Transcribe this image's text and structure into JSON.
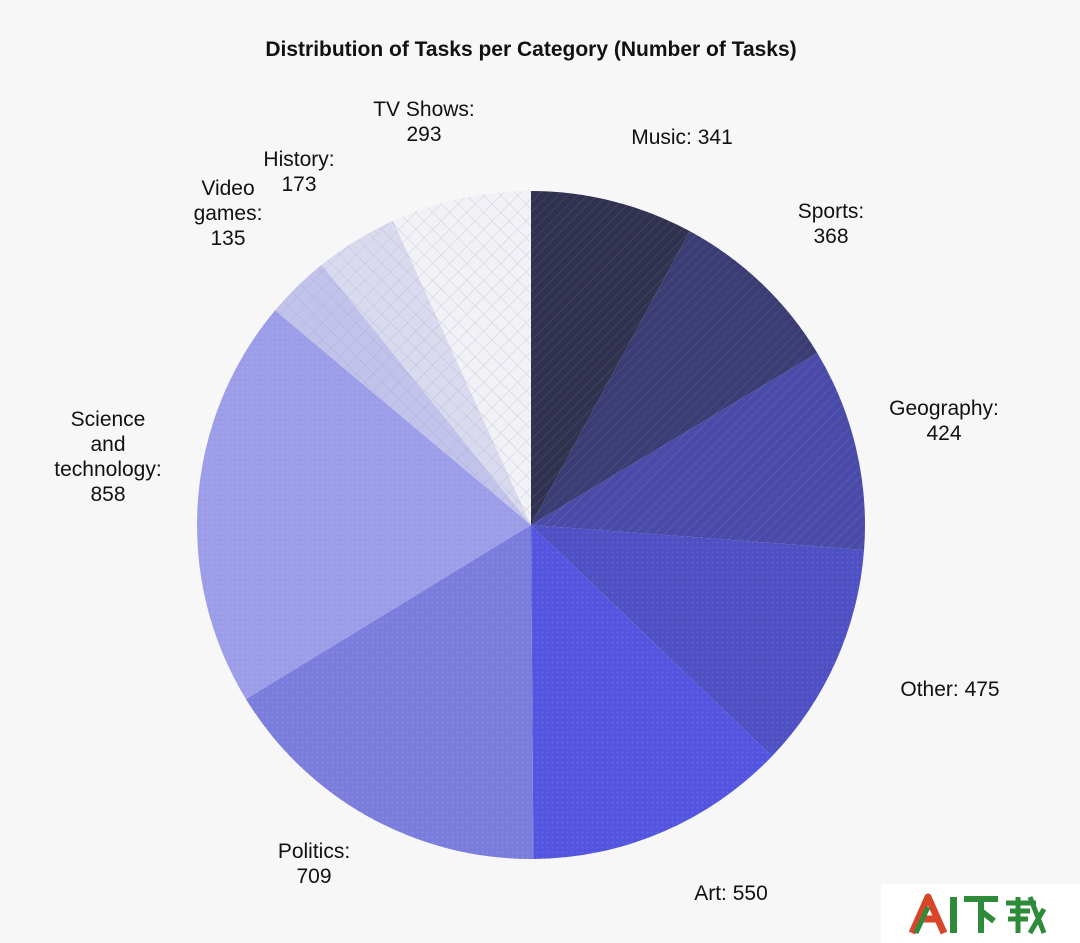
{
  "chart_data": {
    "type": "pie",
    "title": "Distribution of Tasks per Category (Number of Tasks)",
    "slices": [
      {
        "label": "Music: 341",
        "value": 341,
        "color": "#31324f"
      },
      {
        "label": "Sports: 368",
        "value": 368,
        "color": "#3a3c73"
      },
      {
        "label": "Geography: 424",
        "value": 424,
        "color": "#4a4ba8"
      },
      {
        "label": "Other: 475",
        "value": 475,
        "color": "#4e50c4"
      },
      {
        "label": "Art: 550",
        "value": 550,
        "color": "#5355e0"
      },
      {
        "label": "Politics: 709",
        "value": 709,
        "color": "#7b7ddd"
      },
      {
        "label": "Science and technology: 858",
        "value": 858,
        "color": "#9c9de8"
      },
      {
        "label": "Video games: 135",
        "value": 135,
        "color": "#c2c3ea"
      },
      {
        "label": "History: 173",
        "value": 173,
        "color": "#dadaef"
      },
      {
        "label": "TV Shows: 293",
        "value": 293,
        "color": "#f1f1f6"
      }
    ],
    "start": "top",
    "direction": "clockwise"
  },
  "watermark": {
    "text": "AI下载",
    "accent_color": "#d8452a",
    "text_color": "#2e8b3a"
  }
}
